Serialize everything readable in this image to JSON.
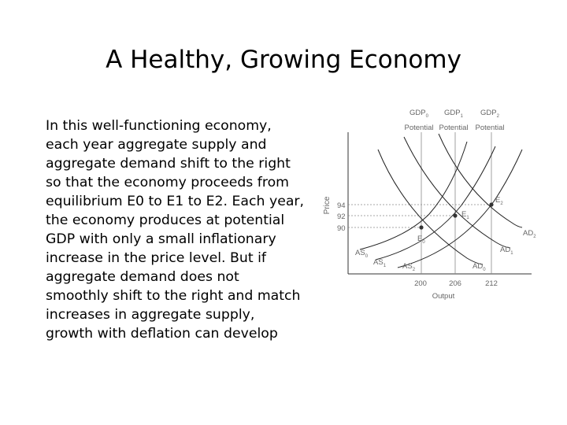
{
  "slide": {
    "title": "A Healthy, Growing Economy",
    "body": "In this well-functioning economy, each year aggregate supply and aggregate demand shift to the right so that the economy proceeds from equilibrium E0 to E1 to E2. Each year, the economy produces at potential GDP with only a small inflationary increase in the price level. But if aggregate demand does not smoothly shift to the right and match increases in aggregate supply, growth with deflation can develop"
  },
  "diagram": {
    "ylabel": "Price",
    "xlabel": "Output",
    "potential_labels": [
      {
        "gdp": "GDP",
        "sub": "0",
        "potential": "Potential"
      },
      {
        "gdp": "GDP",
        "sub": "1",
        "potential": "Potential"
      },
      {
        "gdp": "GDP",
        "sub": "2",
        "potential": "Potential"
      }
    ],
    "price_ticks": [
      "94",
      "92",
      "90"
    ],
    "output_ticks": [
      "200",
      "206",
      "212"
    ],
    "equilibria": [
      {
        "label": "E",
        "sub": "0"
      },
      {
        "label": "E",
        "sub": "1"
      },
      {
        "label": "E",
        "sub": "2"
      }
    ],
    "as_curves": [
      {
        "label": "AS",
        "sub": "0"
      },
      {
        "label": "AS",
        "sub": "1"
      },
      {
        "label": "AS",
        "sub": "2"
      }
    ],
    "ad_curves": [
      {
        "label": "AD",
        "sub": "0"
      },
      {
        "label": "AD",
        "sub": "1"
      },
      {
        "label": "AD",
        "sub": "2"
      }
    ],
    "colors": {
      "curve": "#222222",
      "guide": "#8a8a8a",
      "axis": "#333333",
      "label": "#666666"
    }
  }
}
